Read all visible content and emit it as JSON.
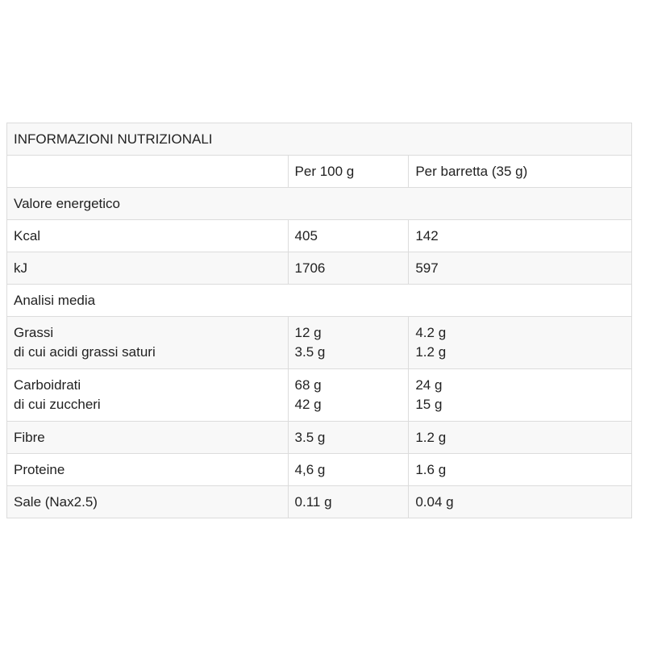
{
  "table": {
    "title": "INFORMAZIONI NUTRIZIONALI",
    "columns": [
      "Per 100 g",
      "Per barretta (35 g)"
    ],
    "rows": [
      [
        [
          "Valore energetico"
        ]
      ],
      [
        [
          "Kcal"
        ],
        [
          "405"
        ],
        [
          "142"
        ]
      ],
      [
        [
          "kJ"
        ],
        [
          "1706"
        ],
        [
          "597"
        ]
      ],
      [
        [
          "Analisi media"
        ]
      ],
      [
        [
          "Grassi",
          "di cui acidi grassi saturi"
        ],
        [
          "12 g",
          "3.5 g"
        ],
        [
          "4.2 g",
          "1.2 g"
        ]
      ],
      [
        [
          "Carboidrati",
          "di cui zuccheri"
        ],
        [
          "68 g",
          "42 g"
        ],
        [
          "24 g",
          "15 g"
        ]
      ],
      [
        [
          "Fibre"
        ],
        [
          "3.5 g"
        ],
        [
          "1.2 g"
        ]
      ],
      [
        [
          "Proteine"
        ],
        [
          "4,6 g"
        ],
        [
          "1.6 g"
        ]
      ],
      [
        [
          "Sale (Nax2.5)"
        ],
        [
          "0.11 g"
        ],
        [
          "0.04 g"
        ]
      ]
    ]
  }
}
